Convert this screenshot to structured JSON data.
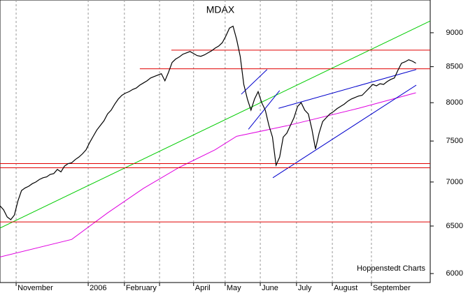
{
  "chart_data": {
    "type": "line",
    "title": "MDAX",
    "source": "Hoppenstedt Charts",
    "log_y": true,
    "ylim": [
      5910,
      9510
    ],
    "yticks": [
      6000,
      6500,
      7000,
      7500,
      8000,
      8500,
      9000
    ],
    "xlim": [
      0,
      120
    ],
    "xticks": [
      {
        "value": 4.5,
        "label": "November"
      },
      {
        "value": 24.6,
        "label": "2006"
      },
      {
        "value": 34.7,
        "label": "February"
      },
      {
        "value": 44.5,
        "label": null
      },
      {
        "value": 54,
        "label": "April"
      },
      {
        "value": 62.8,
        "label": "May"
      },
      {
        "value": 72.6,
        "label": "June"
      },
      {
        "value": 82.7,
        "label": "July"
      },
      {
        "value": 92.7,
        "label": "August"
      },
      {
        "value": 103.6,
        "label": "September"
      }
    ],
    "series": [
      {
        "color": "#000000",
        "values": [
          6725,
          6680,
          6600,
          6570,
          6620,
          6780,
          6900,
          6930,
          6950,
          6980,
          7000,
          7030,
          7050,
          7060,
          7090,
          7100,
          7150,
          7120,
          7190,
          7220,
          7230,
          7270,
          7300,
          7340,
          7390,
          7480,
          7560,
          7640,
          7700,
          7760,
          7850,
          7900,
          7980,
          8050,
          8100,
          8130,
          8150,
          8180,
          8200,
          8240,
          8270,
          8300,
          8340,
          8360,
          8380,
          8400,
          8300,
          8420,
          8560,
          8610,
          8640,
          8680,
          8700,
          8720,
          8690,
          8660,
          8650,
          8670,
          8700,
          8730,
          8770,
          8800,
          8850,
          8950,
          9070,
          9100,
          8900,
          8650,
          8250,
          8050,
          7900,
          8050,
          8150,
          8000,
          7900,
          7700,
          7550,
          7200,
          7300,
          7550,
          7600,
          7700,
          7800,
          7950,
          8000,
          7900,
          7850,
          7650,
          7400,
          7600,
          7750,
          7800,
          7850,
          7880,
          7920,
          7950,
          7980,
          8020,
          8050,
          8070,
          8090,
          8100,
          8150,
          8200,
          8250,
          8230,
          8260,
          8250,
          8290,
          8320,
          8340,
          8450,
          8550,
          8570,
          8600,
          8580,
          8550
        ]
      }
    ],
    "overlays": [
      {
        "color": "#e000e0",
        "x": [
          0,
          20,
          30,
          40,
          50,
          60,
          66,
          80,
          100,
          116
        ],
        "values": [
          6170,
          6355,
          6645,
          6925,
          7175,
          7390,
          7560,
          7695,
          7925,
          8135
        ]
      },
      {
        "color": "#00cc00",
        "x": [
          0,
          120
        ],
        "values": [
          6478,
          9180
        ]
      },
      {
        "color": "#0000cc",
        "x": [
          76.1,
          116.1
        ],
        "values": [
          7050,
          8240
        ]
      },
      {
        "color": "#0000cc",
        "x": [
          77.7,
          116.1
        ],
        "values": [
          7925,
          8460
        ]
      },
      {
        "color": "#0000cc",
        "x": [
          67.3,
          74.5
        ],
        "values": [
          8115,
          8460
        ]
      },
      {
        "color": "#0000cc",
        "x": [
          69.3,
          78
        ],
        "values": [
          7650,
          8165
        ]
      },
      {
        "color": "#e00000",
        "x": [
          47.8,
          120
        ],
        "values": [
          8740,
          8740
        ]
      },
      {
        "color": "#e00000",
        "x": [
          39,
          120
        ],
        "values": [
          8470,
          8470
        ]
      },
      {
        "color": "#e00000",
        "x": [
          0,
          120
        ],
        "values": [
          7220,
          7220
        ]
      },
      {
        "color": "#e00000",
        "x": [
          0,
          120
        ],
        "values": [
          7170,
          7170
        ]
      },
      {
        "color": "#e00000",
        "x": [
          0,
          120
        ],
        "values": [
          6545,
          6545
        ]
      }
    ]
  }
}
